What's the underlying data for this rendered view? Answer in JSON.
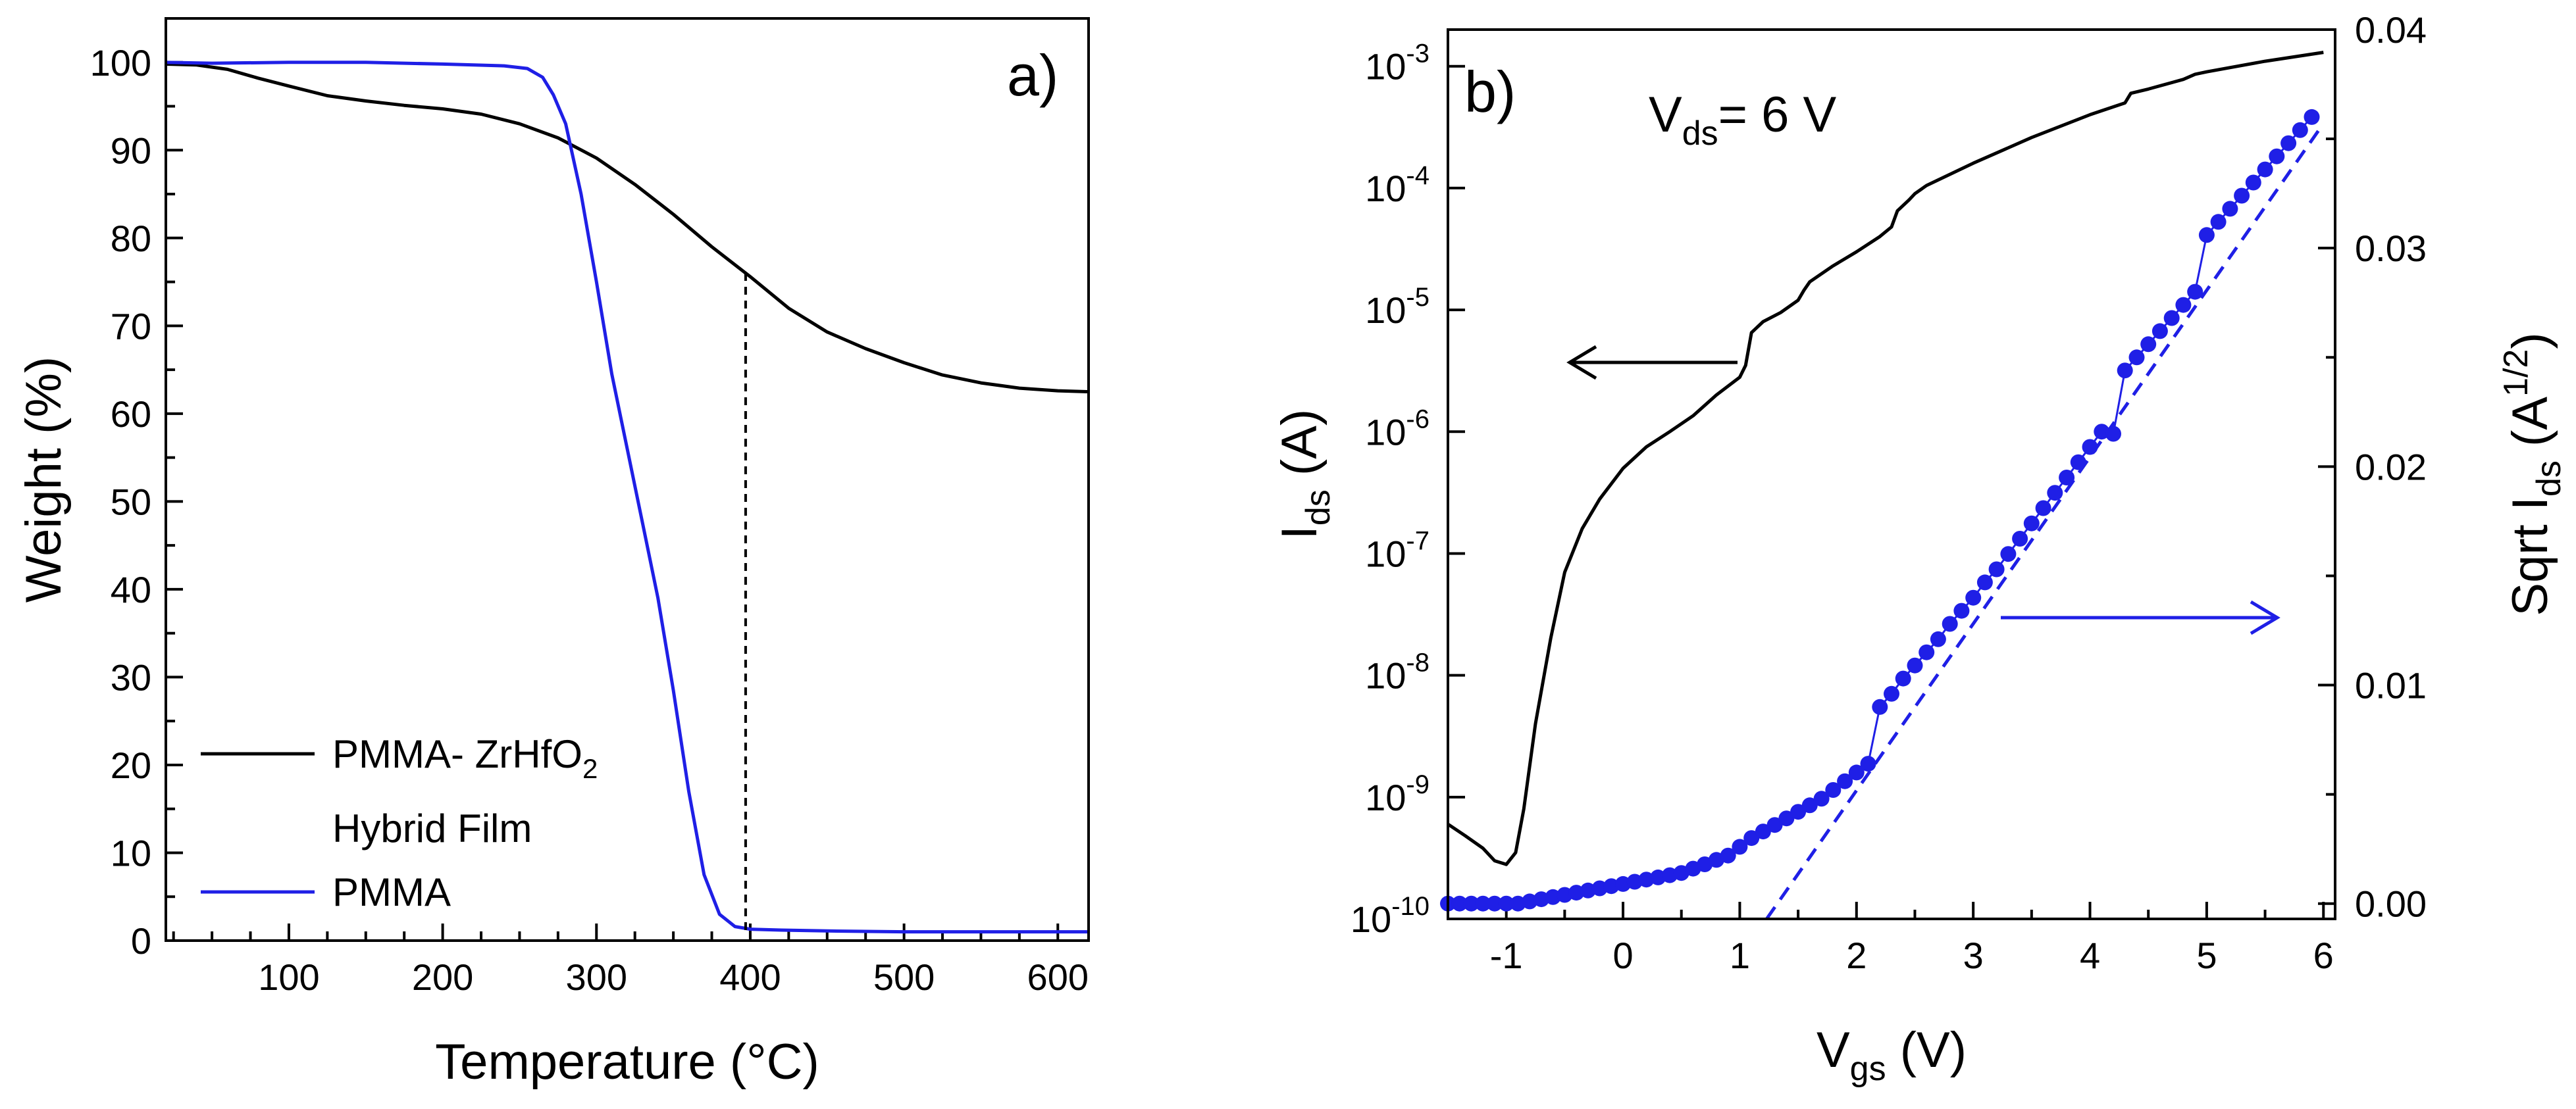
{
  "chart_data": [
    {
      "type": "line",
      "panel_label": "a)",
      "xlabel": "Temperature (°C)",
      "ylabel": "Weight (%)",
      "xlim": [
        20,
        620
      ],
      "ylim": [
        0,
        105
      ],
      "xticks": [
        100,
        200,
        300,
        400,
        500,
        600
      ],
      "yticks": [
        0,
        10,
        20,
        30,
        40,
        50,
        60,
        70,
        80,
        90,
        100
      ],
      "legend_position": "bottom-left",
      "series": [
        {
          "name": "PMMA- ZrHfO",
          "name_sub": "2",
          "name_line2": "Hybrid Film",
          "color": "#000000",
          "x": [
            20,
            40,
            60,
            80,
            100,
            125,
            150,
            175,
            200,
            225,
            250,
            275,
            300,
            325,
            350,
            375,
            400,
            425,
            450,
            475,
            500,
            525,
            550,
            575,
            600,
            620
          ],
          "y": [
            99.8,
            99.7,
            99.2,
            98.2,
            97.3,
            96.2,
            95.6,
            95.1,
            94.7,
            94.1,
            93.0,
            91.4,
            89.1,
            86.1,
            82.7,
            79.0,
            75.6,
            72.0,
            69.3,
            67.4,
            65.8,
            64.4,
            63.5,
            62.9,
            62.6,
            62.5
          ]
        },
        {
          "name": "PMMA",
          "color": "#1f1fe6",
          "x": [
            20,
            50,
            100,
            150,
            200,
            240,
            255,
            265,
            272,
            280,
            290,
            300,
            310,
            320,
            330,
            340,
            350,
            360,
            370,
            380,
            390,
            400,
            420,
            450,
            500,
            550,
            620
          ],
          "y": [
            100,
            99.9,
            100,
            100,
            99.8,
            99.6,
            99.3,
            98.3,
            96.3,
            93.0,
            85.0,
            75.0,
            64.5,
            56.0,
            47.5,
            39.0,
            28.5,
            17.0,
            7.5,
            3.0,
            1.6,
            1.3,
            1.2,
            1.1,
            1.0,
            1.0,
            1.0
          ]
        }
      ],
      "annotation": {
        "type": "vertical-dashed-line",
        "x": 397,
        "y_from": 1.2,
        "y_to": 76.5
      }
    },
    {
      "type": "line+scatter",
      "panel_label": "b)",
      "annotation_text": "V",
      "annotation_sub": "ds",
      "annotation_tail": "= 6 V",
      "xlabel": "V",
      "xlabel_sub": "gs",
      "xlabel_tail": " (V)",
      "ylabel_left": "I",
      "ylabel_left_sub": "ds",
      "ylabel_left_tail": " (A)",
      "ylabel_right": "Sqrt I",
      "ylabel_right_sub": "ds",
      "ylabel_right_mid": " (A",
      "ylabel_right_sup": "1/2",
      "ylabel_right_tail": ")",
      "xlim": [
        -1.5,
        6.1
      ],
      "xticks": [
        -1,
        0,
        1,
        2,
        3,
        4,
        5,
        6
      ],
      "ylim_left": [
        1e-10,
        0.002
      ],
      "yscale_left": "log",
      "yticks_left_base": "10",
      "yticks_left_exp": [
        "-10",
        "-9",
        "-8",
        "-7",
        "-6",
        "-5",
        "-4",
        "-3"
      ],
      "ylim_right": [
        -0.0007,
        0.04
      ],
      "yticks_right": [
        "0.00",
        "0.01",
        "0.02",
        "0.03",
        "0.04"
      ],
      "left_series": {
        "name": "Ids",
        "color": "#000000",
        "x": [
          -1.5,
          -1.35,
          -1.2,
          -1.1,
          -1.0,
          -0.92,
          -0.85,
          -0.75,
          -0.62,
          -0.5,
          -0.35,
          -0.2,
          0.0,
          0.2,
          0.4,
          0.6,
          0.8,
          1.0,
          1.05,
          1.1,
          1.2,
          1.35,
          1.5,
          1.55,
          1.6,
          1.8,
          2.0,
          2.2,
          2.3,
          2.35,
          2.45,
          2.5,
          2.6,
          3.0,
          3.5,
          4.0,
          4.3,
          4.35,
          4.5,
          4.8,
          4.9,
          5.0,
          5.5,
          6.0
        ],
        "y": [
          6e-10,
          4.8e-10,
          3.8e-10,
          3e-10,
          2.8e-10,
          3.5e-10,
          8e-10,
          4e-09,
          2e-08,
          7e-08,
          1.6e-07,
          2.8e-07,
          5e-07,
          7.5e-07,
          1e-06,
          1.35e-06,
          2e-06,
          2.8e-06,
          3.5e-06,
          6.5e-06,
          8e-06,
          9.5e-06,
          1.2e-05,
          1.45e-05,
          1.7e-05,
          2.3e-05,
          3e-05,
          4e-05,
          4.8e-05,
          6.5e-05,
          8e-05,
          9e-05,
          0.000105,
          0.00016,
          0.00026,
          0.0004,
          0.0005,
          0.0006,
          0.00065,
          0.00078,
          0.00086,
          0.0009,
          0.0011,
          0.0013
        ]
      },
      "right_series": {
        "name": "Sqrt Ids",
        "color": "#1f1fe6",
        "x_start": -1.5,
        "x_step": 0.1,
        "values": [
          0.0,
          0.0,
          0.0,
          0.0,
          0.0,
          0.0,
          0.0,
          0.0001,
          0.0002,
          0.0003,
          0.0004,
          0.0005,
          0.0006,
          0.0007,
          0.0008,
          0.0009,
          0.001,
          0.0011,
          0.0012,
          0.0013,
          0.0014,
          0.0016,
          0.0018,
          0.002,
          0.0022,
          0.0026,
          0.003,
          0.0033,
          0.0036,
          0.0039,
          0.0042,
          0.0045,
          0.0048,
          0.0052,
          0.0056,
          0.006,
          0.0064,
          0.009,
          0.0096,
          0.0103,
          0.0109,
          0.0115,
          0.0121,
          0.0128,
          0.0134,
          0.014,
          0.0147,
          0.0153,
          0.016,
          0.0167,
          0.0174,
          0.0181,
          0.0188,
          0.0195,
          0.0202,
          0.0209,
          0.0216,
          0.0215,
          0.0244,
          0.025,
          0.0256,
          0.0262,
          0.0268,
          0.0274,
          0.028,
          0.0306,
          0.0312,
          0.0318,
          0.0324,
          0.033,
          0.0336,
          0.0342,
          0.0348,
          0.0354,
          0.036
        ]
      },
      "fit_line": {
        "color": "#1f1fe6",
        "x": [
          1.23,
          6.0
        ],
        "y": [
          -0.0007,
          0.0357
        ]
      }
    }
  ]
}
